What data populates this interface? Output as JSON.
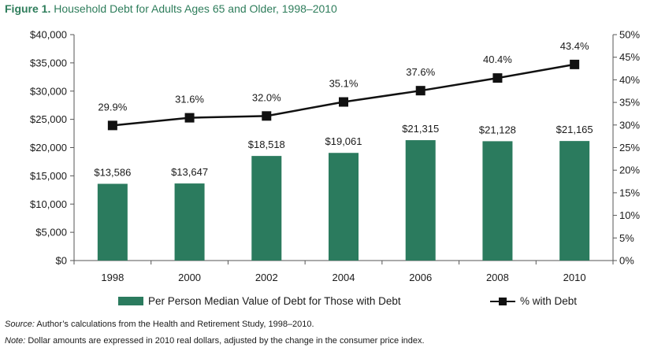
{
  "title": {
    "figure_label": "Figure 1.",
    "text": "Household Debt for Adults Ages 65 and Older, 1998–2010"
  },
  "colors": {
    "bar": "#2b7b5e",
    "line": "#111111",
    "title": "#2e7d5b"
  },
  "chart_data": {
    "type": "bar",
    "categories": [
      "1998",
      "2000",
      "2002",
      "2004",
      "2006",
      "2008",
      "2010"
    ],
    "series": [
      {
        "name": "Per Person Median Value of Debt for Those with Debt",
        "type": "bar",
        "axis": "left",
        "values": [
          13586,
          13647,
          18518,
          19061,
          21315,
          21128,
          21165
        ],
        "labels": [
          "$13,586",
          "$13,647",
          "$18,518",
          "$19,061",
          "$21,315",
          "$21,128",
          "$21,165"
        ]
      },
      {
        "name": "% with Debt",
        "type": "line",
        "axis": "right",
        "values": [
          29.9,
          31.6,
          32.0,
          35.1,
          37.6,
          40.4,
          43.4
        ],
        "labels": [
          "29.9%",
          "31.6%",
          "32.0%",
          "35.1%",
          "37.6%",
          "40.4%",
          "43.4%"
        ]
      }
    ],
    "y_left": {
      "ylim": [
        0,
        40000
      ],
      "ticks": [
        "$0",
        "$5,000",
        "$10,000",
        "$15,000",
        "$20,000",
        "$25,000",
        "$30,000",
        "$35,000",
        "$40,000"
      ]
    },
    "y_right": {
      "ylim": [
        0,
        50
      ],
      "ticks": [
        "0%",
        "5%",
        "10%",
        "15%",
        "20%",
        "25%",
        "30%",
        "35%",
        "40%",
        "45%",
        "50%"
      ]
    },
    "grid": false,
    "legend_position": "bottom"
  },
  "legend": {
    "bar_label": "Per Person Median Value of Debt for Those with Debt",
    "line_label": "% with Debt"
  },
  "footnotes": {
    "source_label": "Source:",
    "source_text": " Author’s calculations from the Health and Retirement Study, 1998–2010.",
    "note_label": "Note:",
    "note_text": " Dollar amounts are expressed in 2010 real dollars, adjusted by the change in the consumer price index."
  }
}
